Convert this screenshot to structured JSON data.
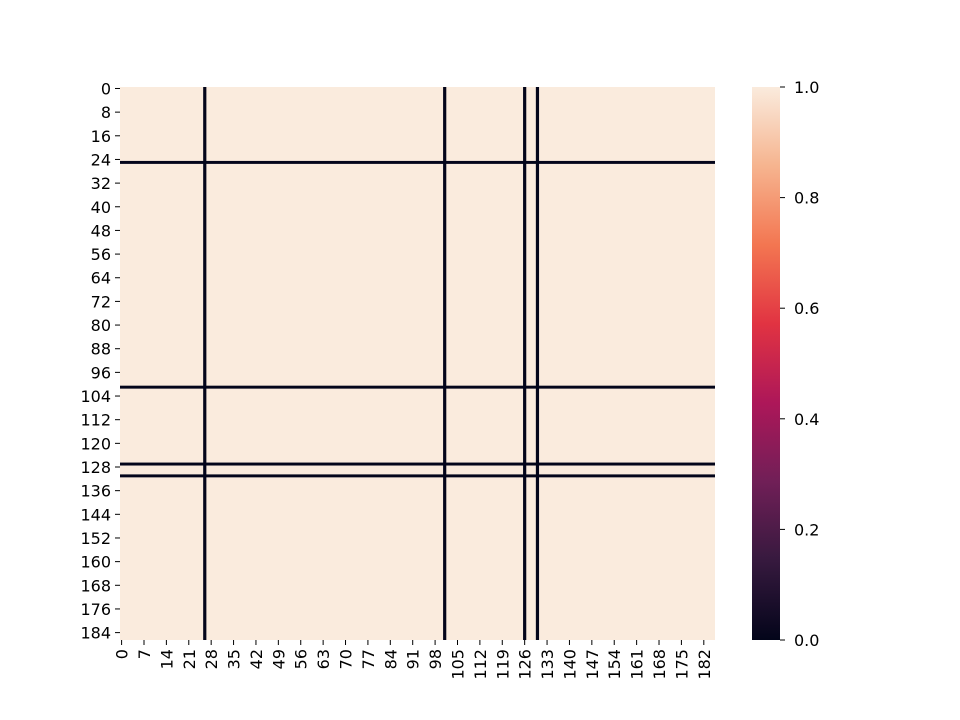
{
  "chart_data": {
    "type": "heatmap",
    "title": "",
    "xlabel": "",
    "ylabel": "",
    "n_cols": 186,
    "n_rows": 187,
    "fill_value": 1.0,
    "zero_cols": [
      26,
      101,
      126,
      130
    ],
    "zero_rows": [
      25,
      101,
      127,
      131
    ],
    "x_ticks": [
      0,
      7,
      14,
      21,
      28,
      35,
      42,
      49,
      56,
      63,
      70,
      77,
      84,
      91,
      98,
      105,
      112,
      119,
      126,
      133,
      140,
      147,
      154,
      161,
      168,
      175,
      182
    ],
    "y_ticks": [
      0,
      8,
      16,
      24,
      32,
      40,
      48,
      56,
      64,
      72,
      80,
      88,
      96,
      104,
      112,
      120,
      128,
      136,
      144,
      152,
      160,
      168,
      176,
      184
    ],
    "colorbar": {
      "vmin": 0.0,
      "vmax": 1.0,
      "ticks": [
        "0.0",
        "0.2",
        "0.4",
        "0.6",
        "0.8",
        "1.0"
      ],
      "colormap": "rocket",
      "stops": [
        "#03051a",
        "#36193e",
        "#701f57",
        "#ad1759",
        "#e13342",
        "#f37651",
        "#f6b48f",
        "#faebdd"
      ]
    },
    "grid": false
  }
}
